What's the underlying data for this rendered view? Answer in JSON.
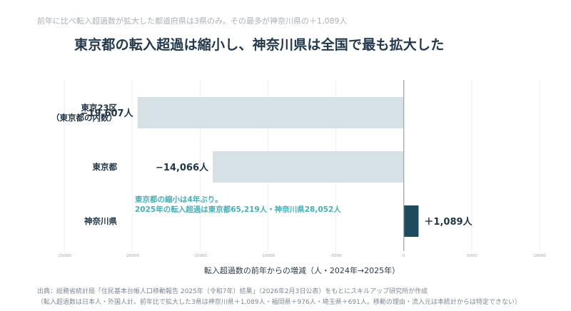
{
  "header": {
    "kicker": "前年に比べ転入超過数が拡大した都道府県は3県のみ。その最多が神奈川県の＋1,089人",
    "title": "東京都の転入超過は縮小し、神奈川県は全国で最も拡大した"
  },
  "chart_data": {
    "type": "bar",
    "orientation": "horizontal",
    "categories": [
      [
        "東京23区",
        "（東京都の内数）"
      ],
      [
        "東京都"
      ],
      [
        "神奈川県"
      ]
    ],
    "values": [
      -19607,
      -14066,
      1089
    ],
    "value_labels": [
      "−19,607人",
      "−14,066人",
      "＋1,089人"
    ],
    "xlabel": "転入超過数の前年からの増減（人・2024年→2025年）",
    "xlim": [
      -25000,
      10000
    ],
    "xticks": [
      -25000,
      -20000,
      -15000,
      -10000,
      -5000,
      0,
      5000,
      10000
    ],
    "grid": true,
    "colors": {
      "negative": "#d6e1e6",
      "positive": "#1e4a5e",
      "annotation": "#3fb3b8",
      "text": "#1f3547"
    },
    "annotation": {
      "lines": [
        "東京都の縮小は4年ぶり。",
        "2025年の転入超過は東京都65,219人・神奈川県28,052人"
      ]
    }
  },
  "footer": {
    "source": "出典：総務省統計局「住民基本台帳人口移動報告 2025年（令和7年）結果」（2026年2月3日公表）をもとにスキルアップ研究所が作成",
    "note": "（転入超過数は日本人・外国人計。前年比で拡大した3県は神奈川県＋1,089人・福岡県＋976人・埼玉県＋691人。移動の理由・流入元は本統計からは特定できない）"
  }
}
